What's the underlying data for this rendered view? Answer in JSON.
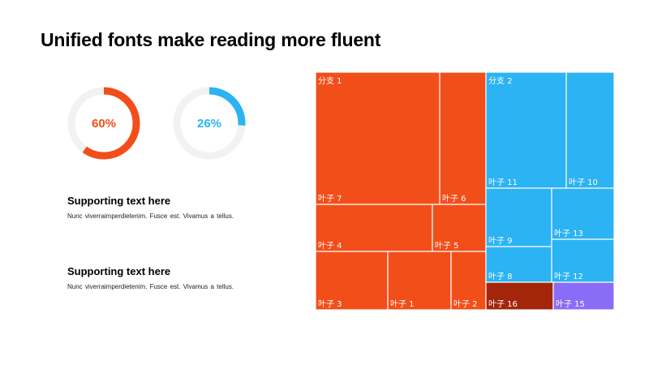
{
  "slide": {
    "title": "Unified fonts make reading more fluent"
  },
  "donuts": [
    {
      "value": 0.6,
      "label": "60%",
      "color": "#F24E1A",
      "track": "#F2F2F2"
    },
    {
      "value": 0.26,
      "label": "26%",
      "color": "#2BB3F3",
      "track": "#F2F2F2"
    }
  ],
  "blocks": [
    {
      "heading": "Supporting text here",
      "body": "Nunc  viverraimperdietenim.  Fusce est.  Vivamus  a tellus."
    },
    {
      "heading": "Supporting text here",
      "body": "Nunc  viverraimperdietenim.  Fusce est.  Vivamus  a tellus."
    }
  ],
  "chart_data": {
    "type": "treemap",
    "title": "",
    "branches": [
      {
        "name": "分支 1",
        "color": "#F24E1A"
      },
      {
        "name": "分支 2",
        "color": "#2BB3F3"
      }
    ],
    "leaves": [
      {
        "name": "叶子 7",
        "branch": "分支 1",
        "color": "#F24E1A"
      },
      {
        "name": "叶子 6",
        "branch": "分支 1",
        "color": "#F24E1A"
      },
      {
        "name": "叶子 4",
        "branch": "分支 1",
        "color": "#F24E1A"
      },
      {
        "name": "叶子 5",
        "branch": "分支 1",
        "color": "#F24E1A"
      },
      {
        "name": "叶子 3",
        "branch": "分支 1",
        "color": "#F24E1A"
      },
      {
        "name": "叶子 1",
        "branch": "分支 1",
        "color": "#F24E1A"
      },
      {
        "name": "叶子 2",
        "branch": "分支 1",
        "color": "#F24E1A"
      },
      {
        "name": "叶子 11",
        "branch": "分支 2",
        "color": "#2BB3F3"
      },
      {
        "name": "叶子 10",
        "branch": "分支 2",
        "color": "#2BB3F3"
      },
      {
        "name": "叶子 9",
        "branch": "分支 2",
        "color": "#2BB3F3"
      },
      {
        "name": "叶子 13",
        "branch": "分支 2",
        "color": "#2BB3F3"
      },
      {
        "name": "叶子 8",
        "branch": "分支 2",
        "color": "#2BB3F3"
      },
      {
        "name": "叶子 12",
        "branch": "分支 2",
        "color": "#2BB3F3"
      },
      {
        "name": "叶子 16",
        "branch": "分支 2",
        "color": "#A3260A"
      },
      {
        "name": "叶子 15",
        "branch": "分支 2",
        "color": "#8B6CF6"
      }
    ]
  }
}
